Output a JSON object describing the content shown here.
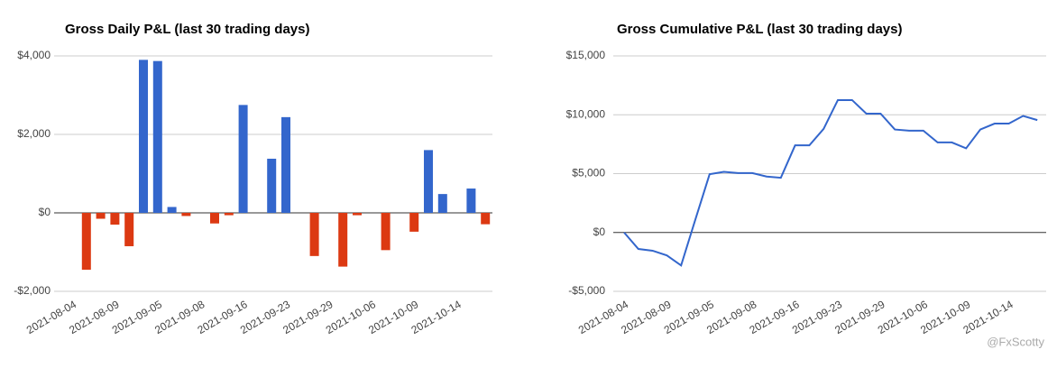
{
  "chart_data": [
    {
      "type": "bar",
      "title": "Gross Daily P&L (last 30 trading days)",
      "categories": [
        "2021-08-04",
        null,
        null,
        "2021-08-09",
        null,
        null,
        "2021-09-05",
        null,
        null,
        "2021-09-08",
        null,
        null,
        "2021-09-16",
        null,
        null,
        "2021-09-23",
        null,
        null,
        "2021-09-29",
        null,
        null,
        "2021-10-06",
        null,
        null,
        "2021-10-09",
        null,
        null,
        "2021-10-14",
        null,
        null
      ],
      "values": [
        0,
        -1450,
        -150,
        -300,
        -850,
        3900,
        3870,
        150,
        -80,
        0,
        -270,
        -60,
        2750,
        0,
        1380,
        2440,
        0,
        -1100,
        0,
        -1370,
        -60,
        0,
        -950,
        0,
        -480,
        1600,
        480,
        0,
        620,
        -290
      ],
      "colors": {
        "positive": "#3366cc",
        "negative": "#dc3912"
      },
      "ylim": [
        -2000,
        4000
      ],
      "yticks": [
        {
          "value": -2000,
          "label": "-$2,000"
        },
        {
          "value": 0,
          "label": "$0"
        },
        {
          "value": 2000,
          "label": "$2,000"
        },
        {
          "value": 4000,
          "label": "$4,000"
        }
      ],
      "grid": true
    },
    {
      "type": "line",
      "title": "Gross Cumulative P&L (last 30 trading days)",
      "categories": [
        "2021-08-04",
        null,
        null,
        "2021-08-09",
        null,
        null,
        "2021-09-05",
        null,
        null,
        "2021-09-08",
        null,
        null,
        "2021-09-16",
        null,
        null,
        "2021-09-23",
        null,
        null,
        "2021-09-29",
        null,
        null,
        "2021-10-06",
        null,
        null,
        "2021-10-09",
        null,
        null,
        "2021-10-14",
        null,
        null
      ],
      "values": [
        0,
        -1400,
        -1550,
        -1950,
        -2800,
        1100,
        4950,
        5150,
        5050,
        5050,
        4750,
        4650,
        7400,
        7400,
        8800,
        11250,
        11250,
        10100,
        10100,
        8750,
        8650,
        8650,
        7650,
        7650,
        7150,
        8750,
        9250,
        9250,
        9900,
        9550
      ],
      "color": "#3366cc",
      "ylim": [
        -5000,
        15000
      ],
      "yticks": [
        {
          "value": -5000,
          "label": "-$5,000"
        },
        {
          "value": 0,
          "label": "$0"
        },
        {
          "value": 5000,
          "label": "$5,000"
        },
        {
          "value": 10000,
          "label": "$10,000"
        },
        {
          "value": 15000,
          "label": "$15,000"
        }
      ],
      "grid": true
    }
  ],
  "watermark": "@FxScotty"
}
